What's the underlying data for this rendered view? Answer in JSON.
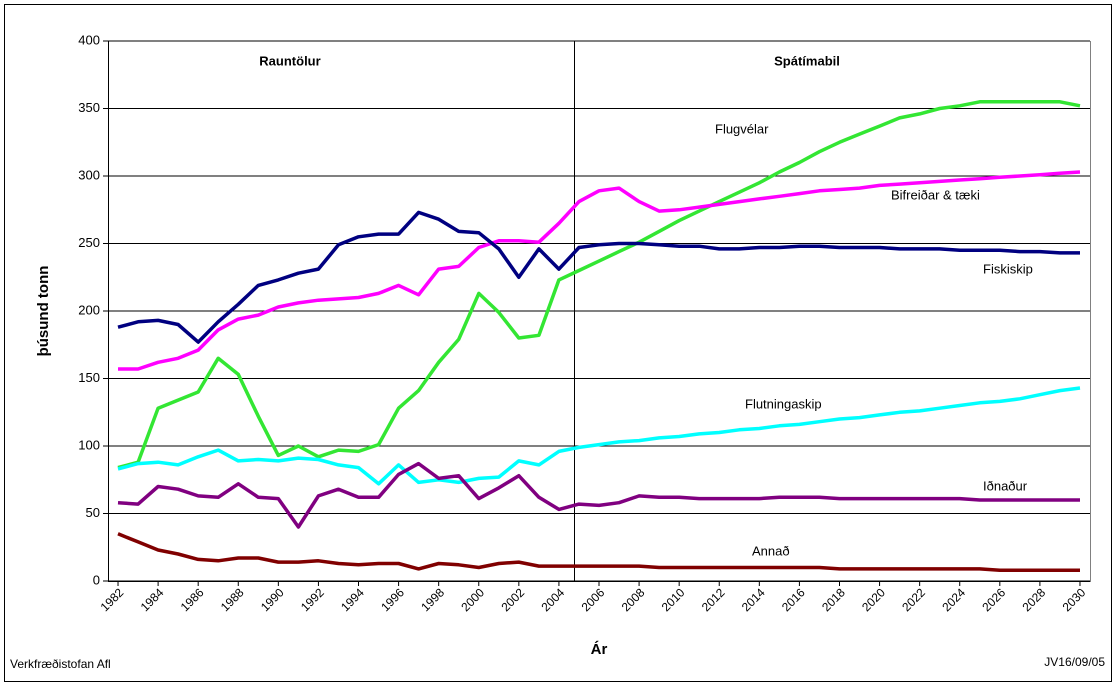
{
  "chart_data": {
    "type": "line",
    "y_label": "þúsund tonn",
    "x_label": "Ár",
    "annotations": {
      "left_period": "Rauntölur",
      "right_period": "Spátímabil",
      "source": "Verkfræðistofan Afl",
      "code": "JV16/09/05"
    },
    "x": [
      1982,
      1983,
      1984,
      1985,
      1986,
      1987,
      1988,
      1989,
      1990,
      1991,
      1992,
      1993,
      1994,
      1995,
      1996,
      1997,
      1998,
      1999,
      2000,
      2001,
      2002,
      2003,
      2004,
      2005,
      2006,
      2007,
      2008,
      2009,
      2010,
      2011,
      2012,
      2013,
      2014,
      2015,
      2016,
      2017,
      2018,
      2019,
      2020,
      2021,
      2022,
      2023,
      2024,
      2025,
      2026,
      2027,
      2028,
      2029,
      2030
    ],
    "xlim": [
      1981.5,
      2030.5
    ],
    "xticks": [
      1982,
      1984,
      1986,
      1988,
      1990,
      1992,
      1994,
      1996,
      1998,
      2000,
      2002,
      2004,
      2006,
      2008,
      2010,
      2012,
      2014,
      2016,
      2018,
      2020,
      2022,
      2024,
      2026,
      2028,
      2030
    ],
    "ylim": [
      0,
      400
    ],
    "yticks": [
      0,
      50,
      100,
      150,
      200,
      250,
      300,
      350,
      400
    ],
    "grid": true,
    "series": [
      {
        "name": "Flugvélar",
        "color": "#33e633",
        "values": [
          84,
          88,
          128,
          134,
          140,
          165,
          153,
          122,
          93,
          100,
          92,
          97,
          96,
          101,
          128,
          141,
          162,
          179,
          213,
          199,
          180,
          182,
          223,
          230,
          237,
          244,
          251,
          259,
          267,
          274,
          281,
          288,
          295,
          303,
          310,
          318,
          325,
          331,
          337,
          343,
          346,
          350,
          352,
          355,
          355,
          355,
          355,
          355,
          352
        ]
      },
      {
        "name": "Bifreiðar & tæki",
        "color": "#ff00ff",
        "values": [
          157,
          157,
          162,
          165,
          171,
          186,
          194,
          197,
          203,
          206,
          208,
          209,
          210,
          213,
          219,
          212,
          231,
          233,
          247,
          252,
          252,
          251,
          265,
          281,
          289,
          291,
          281,
          274,
          275,
          277,
          279,
          281,
          283,
          285,
          287,
          289,
          290,
          291,
          293,
          294,
          295,
          296,
          297,
          298,
          299,
          300,
          301,
          302,
          303
        ]
      },
      {
        "name": "Fiskiskip",
        "color": "#000080",
        "values": [
          188,
          192,
          193,
          190,
          177,
          192,
          205,
          219,
          223,
          228,
          231,
          249,
          255,
          257,
          257,
          273,
          268,
          259,
          258,
          246,
          225,
          246,
          231,
          247,
          249,
          250,
          250,
          249,
          248,
          248,
          246,
          246,
          247,
          247,
          248,
          248,
          247,
          247,
          247,
          246,
          246,
          246,
          245,
          245,
          245,
          244,
          244,
          243,
          243
        ]
      },
      {
        "name": "Flutningaskip",
        "color": "#00ffff",
        "values": [
          83,
          87,
          88,
          86,
          92,
          97,
          89,
          90,
          89,
          91,
          90,
          86,
          84,
          72,
          86,
          73,
          75,
          73,
          76,
          77,
          89,
          86,
          96,
          99,
          101,
          103,
          104,
          106,
          107,
          109,
          110,
          112,
          113,
          115,
          116,
          118,
          120,
          121,
          123,
          125,
          126,
          128,
          130,
          132,
          133,
          135,
          138,
          141,
          143
        ]
      },
      {
        "name": "Iðnaður",
        "color": "#800080",
        "values": [
          58,
          57,
          70,
          68,
          63,
          62,
          72,
          62,
          61,
          40,
          63,
          68,
          62,
          62,
          79,
          87,
          76,
          78,
          61,
          69,
          78,
          62,
          53,
          57,
          56,
          58,
          63,
          62,
          62,
          61,
          61,
          61,
          61,
          62,
          62,
          62,
          61,
          61,
          61,
          61,
          61,
          61,
          61,
          60,
          60,
          60,
          60,
          60,
          60
        ]
      },
      {
        "name": "Annað",
        "color": "#800000",
        "values": [
          35,
          29,
          23,
          20,
          16,
          15,
          17,
          17,
          14,
          14,
          15,
          13,
          12,
          13,
          13,
          9,
          13,
          12,
          10,
          13,
          14,
          11,
          11,
          11,
          11,
          11,
          11,
          10,
          10,
          10,
          10,
          10,
          10,
          10,
          10,
          10,
          9,
          9,
          9,
          9,
          9,
          9,
          9,
          9,
          8,
          8,
          8,
          8,
          8
        ]
      }
    ]
  }
}
